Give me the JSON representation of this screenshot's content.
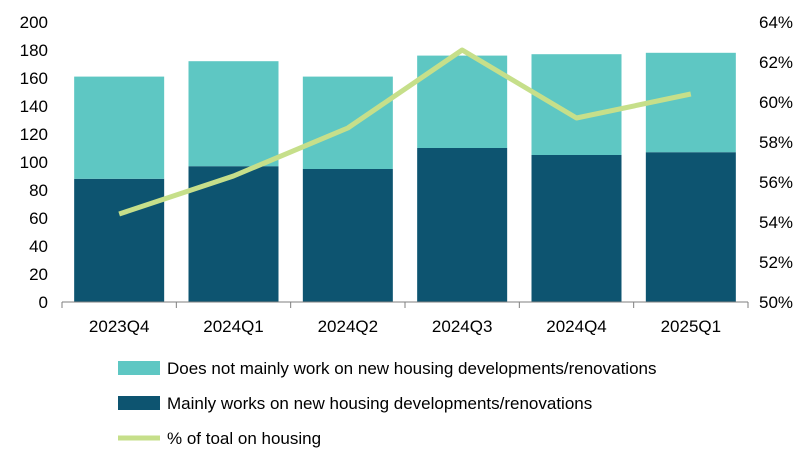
{
  "chart_data": {
    "type": "bar",
    "stacked": true,
    "categories": [
      "2023Q4",
      "2024Q1",
      "2024Q2",
      "2024Q3",
      "2024Q4",
      "2025Q1"
    ],
    "series": [
      {
        "name": "Mainly works on new housing developments/renovations",
        "kind": "bar",
        "axis": "left",
        "color": "#0d5470",
        "values": [
          88,
          97,
          95,
          110,
          105,
          107
        ]
      },
      {
        "name": "Does not mainly work on new housing developments/renovations",
        "kind": "bar",
        "axis": "left",
        "color": "#5ec7c3",
        "values": [
          73,
          75,
          66,
          66,
          72,
          71
        ]
      },
      {
        "name": "% of toal on housing",
        "kind": "line",
        "axis": "right",
        "color": "#c6df8a",
        "values": [
          54.4,
          56.3,
          58.7,
          62.6,
          59.2,
          60.4
        ]
      }
    ],
    "legend_order": [
      "Does not mainly work on new housing developments/renovations",
      "Mainly works on new housing developments/renovations",
      "% of toal on housing"
    ],
    "y_left": {
      "lim": [
        0,
        200
      ],
      "ticks": [
        "0",
        "20",
        "40",
        "60",
        "80",
        "100",
        "120",
        "140",
        "160",
        "180",
        "200"
      ]
    },
    "y_right": {
      "lim": [
        50,
        64
      ],
      "ticks": [
        "50%",
        "52%",
        "54%",
        "56%",
        "58%",
        "60%",
        "62%",
        "64%"
      ]
    },
    "title": "",
    "xlabel": "",
    "ylabel": "",
    "grid": false,
    "legend_position": "bottom"
  }
}
